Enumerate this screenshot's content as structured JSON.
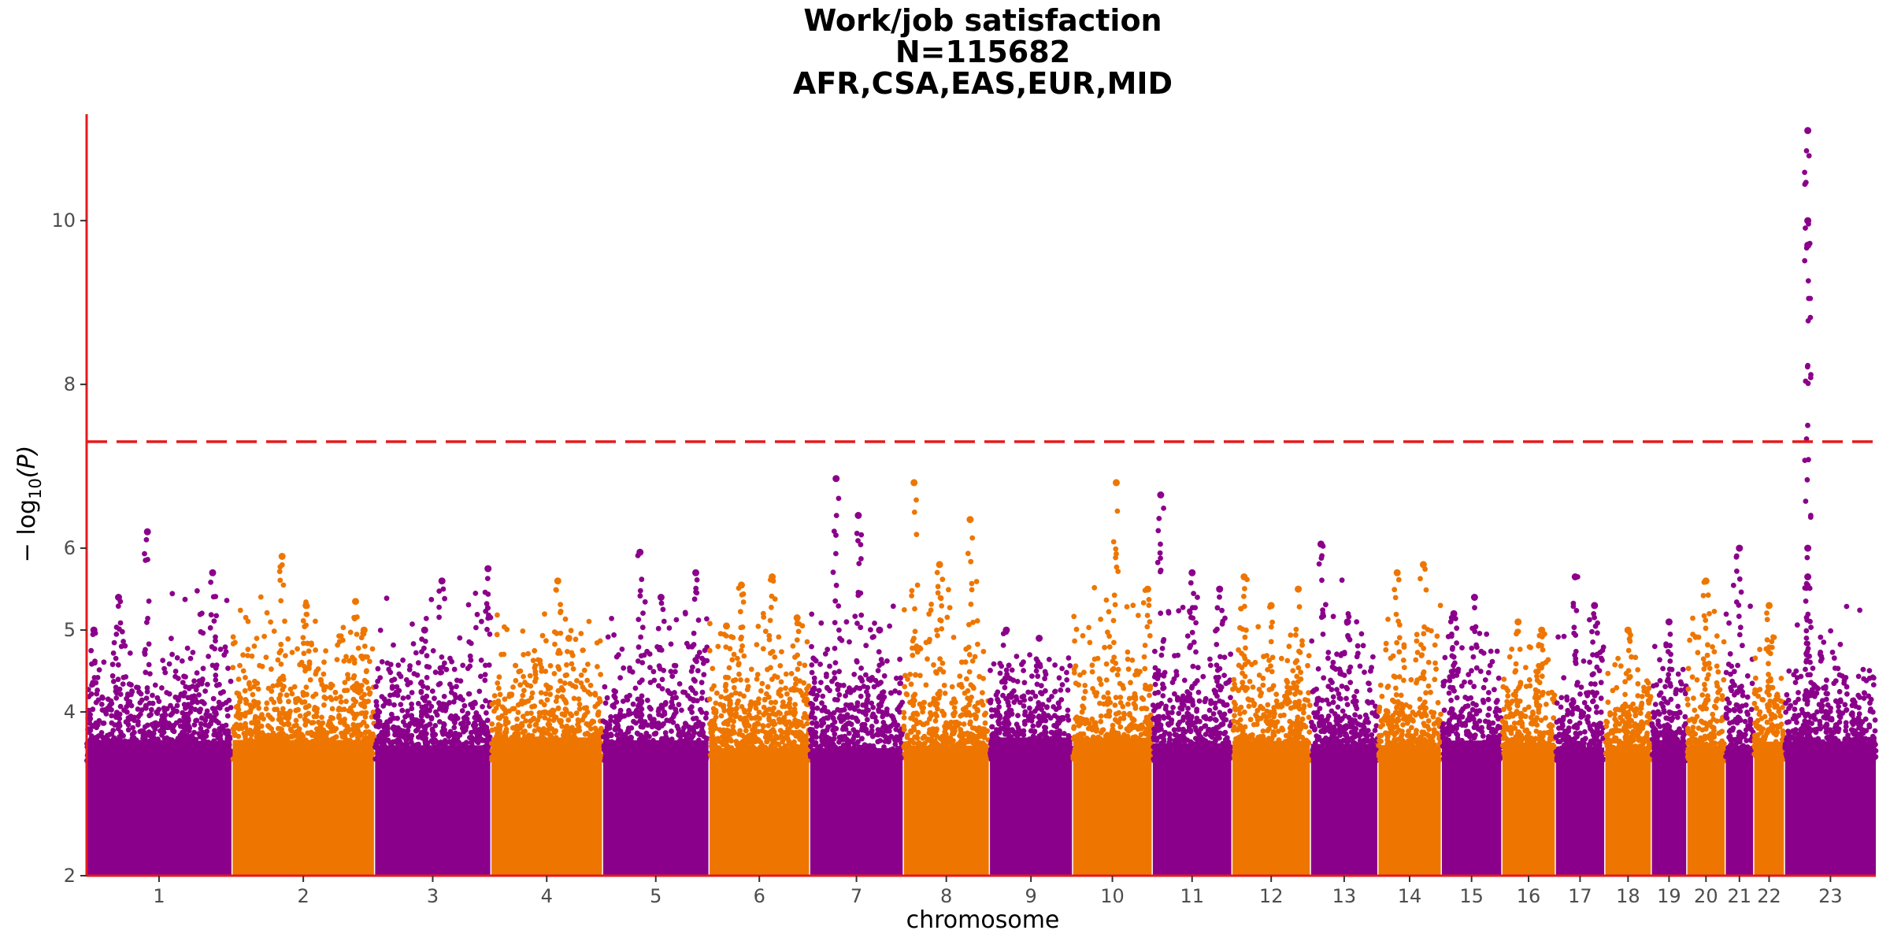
{
  "chart_data": {
    "type": "scatter",
    "title_lines": [
      "Work/job satisfaction",
      "N=115682",
      "AFR,CSA,EAS,EUR,MID"
    ],
    "xlabel": "chromosome",
    "ylabel_prefix": "− log",
    "ylabel_sub": "10",
    "ylabel_suffix": "(P)",
    "ylim": [
      2,
      11.3
    ],
    "yticks": [
      2,
      4,
      5,
      6,
      8,
      10
    ],
    "significance_line": 7.3,
    "colors": {
      "odd": "#8b008b",
      "even": "#ee7600",
      "axis": "#e41a1c",
      "threshold": "#e41a1c"
    },
    "chromosomes": [
      {
        "label": "1",
        "size": 249,
        "max": 6.2,
        "peaks": [
          [
            0.05,
            5.0
          ],
          [
            0.22,
            5.4
          ],
          [
            0.42,
            6.2
          ],
          [
            0.87,
            5.7
          ]
        ]
      },
      {
        "label": "2",
        "size": 243,
        "max": 5.9,
        "peaks": [
          [
            0.35,
            5.9
          ],
          [
            0.52,
            5.3
          ],
          [
            0.87,
            5.35
          ],
          [
            0.93,
            5.0
          ]
        ]
      },
      {
        "label": "3",
        "size": 198,
        "max": 5.75,
        "peaks": [
          [
            0.43,
            5.0
          ],
          [
            0.58,
            5.6
          ],
          [
            0.98,
            5.75
          ]
        ]
      },
      {
        "label": "4",
        "size": 190,
        "max": 5.6,
        "peaks": [
          [
            0.6,
            5.6
          ],
          [
            0.7,
            4.9
          ]
        ]
      },
      {
        "label": "5",
        "size": 181,
        "max": 5.95,
        "peaks": [
          [
            0.35,
            5.95
          ],
          [
            0.55,
            5.4
          ],
          [
            0.88,
            5.7
          ]
        ]
      },
      {
        "label": "6",
        "size": 171,
        "max": 5.65,
        "peaks": [
          [
            0.17,
            5.05
          ],
          [
            0.32,
            5.55
          ],
          [
            0.63,
            5.65
          ],
          [
            0.88,
            5.15
          ]
        ]
      },
      {
        "label": "7",
        "size": 159,
        "max": 6.85,
        "peaks": [
          [
            0.28,
            6.85
          ],
          [
            0.52,
            6.4
          ],
          [
            0.75,
            5.0
          ]
        ]
      },
      {
        "label": "8",
        "size": 146,
        "max": 6.8,
        "peaks": [
          [
            0.12,
            6.8
          ],
          [
            0.42,
            5.8
          ],
          [
            0.78,
            6.35
          ]
        ]
      },
      {
        "label": "9",
        "size": 141,
        "max": 5.0,
        "peaks": [
          [
            0.2,
            5.0
          ],
          [
            0.6,
            4.9
          ]
        ]
      },
      {
        "label": "10",
        "size": 135,
        "max": 6.8,
        "peaks": [
          [
            0.55,
            6.8
          ],
          [
            0.95,
            5.5
          ]
        ]
      },
      {
        "label": "11",
        "size": 135,
        "max": 6.65,
        "peaks": [
          [
            0.1,
            6.65
          ],
          [
            0.5,
            5.7
          ],
          [
            0.85,
            5.5
          ]
        ]
      },
      {
        "label": "12",
        "size": 133,
        "max": 5.65,
        "peaks": [
          [
            0.15,
            5.65
          ],
          [
            0.5,
            5.3
          ],
          [
            0.85,
            5.5
          ]
        ]
      },
      {
        "label": "13",
        "size": 114,
        "max": 6.05,
        "peaks": [
          [
            0.15,
            6.05
          ],
          [
            0.55,
            5.1
          ]
        ]
      },
      {
        "label": "14",
        "size": 107,
        "max": 5.8,
        "peaks": [
          [
            0.3,
            5.7
          ],
          [
            0.72,
            5.8
          ]
        ]
      },
      {
        "label": "15",
        "size": 102,
        "max": 5.4,
        "peaks": [
          [
            0.2,
            5.2
          ],
          [
            0.55,
            5.4
          ]
        ]
      },
      {
        "label": "16",
        "size": 90,
        "max": 5.1,
        "peaks": [
          [
            0.3,
            5.1
          ],
          [
            0.75,
            5.0
          ]
        ]
      },
      {
        "label": "17",
        "size": 83,
        "max": 5.65,
        "peaks": [
          [
            0.4,
            5.65
          ],
          [
            0.8,
            5.3
          ]
        ]
      },
      {
        "label": "18",
        "size": 78,
        "max": 5.0,
        "peaks": [
          [
            0.5,
            5.0
          ]
        ]
      },
      {
        "label": "19",
        "size": 59,
        "max": 5.1,
        "peaks": [
          [
            0.5,
            5.1
          ]
        ]
      },
      {
        "label": "20",
        "size": 64,
        "max": 5.6,
        "peaks": [
          [
            0.5,
            5.6
          ]
        ]
      },
      {
        "label": "21",
        "size": 47,
        "max": 6.0,
        "peaks": [
          [
            0.5,
            6.0
          ]
        ]
      },
      {
        "label": "22",
        "size": 51,
        "max": 5.3,
        "peaks": [
          [
            0.5,
            5.3
          ]
        ]
      },
      {
        "label": "23",
        "size": 156,
        "max": 11.1,
        "peaks": [
          [
            0.25,
            11.1
          ],
          [
            0.25,
            10.0
          ],
          [
            0.25,
            9.7
          ],
          [
            0.25,
            6.0
          ],
          [
            0.25,
            5.65
          ]
        ]
      }
    ]
  }
}
